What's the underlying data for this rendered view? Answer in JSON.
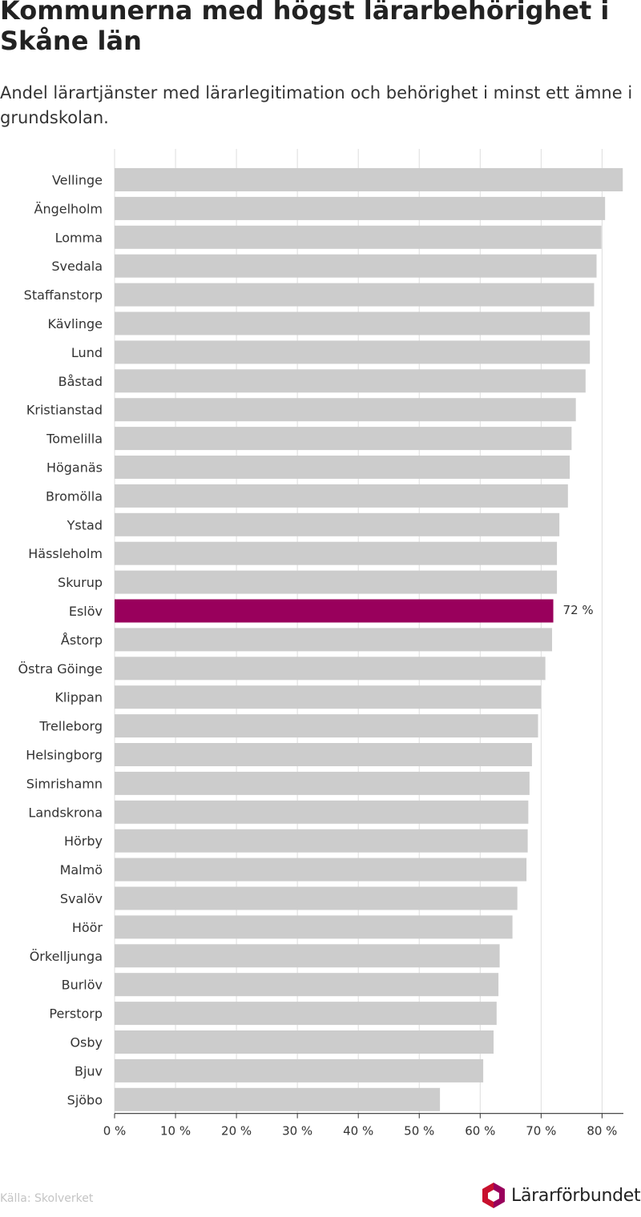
{
  "title": "Kommunerna med högst lärarbehörighet i Skåne län",
  "subtitle": "Andel lärartjänster med lärarlegitimation och behörighet i minst ett ämne i grundskolan.",
  "source": "Källa: Skolverket",
  "logo_text": "Lärarförbundet",
  "colors": {
    "bar": "#cccccc",
    "highlight": "#99005c",
    "grid": "#dddddd",
    "axis": "#333333",
    "logo_red": "#c8102e",
    "logo_purple": "#99005c"
  },
  "chart_data": {
    "type": "bar",
    "orientation": "horizontal",
    "categories": [
      "Vellinge",
      "Ängelholm",
      "Lomma",
      "Svedala",
      "Staffanstorp",
      "Kävlinge",
      "Lund",
      "Båstad",
      "Kristianstad",
      "Tomelilla",
      "Höganäs",
      "Bromölla",
      "Ystad",
      "Hässleholm",
      "Skurup",
      "Eslöv",
      "Åstorp",
      "Östra Göinge",
      "Klippan",
      "Trelleborg",
      "Helsingborg",
      "Simrishamn",
      "Landskrona",
      "Hörby",
      "Malmö",
      "Svalöv",
      "Höör",
      "Örkelljunga",
      "Burlöv",
      "Perstorp",
      "Osby",
      "Bjuv",
      "Sjöbo"
    ],
    "values": [
      83.4,
      80.5,
      79.9,
      79.1,
      78.7,
      78.0,
      78.0,
      77.3,
      75.7,
      75.0,
      74.7,
      74.4,
      73.0,
      72.6,
      72.6,
      72,
      71.8,
      70.7,
      70.0,
      69.5,
      68.5,
      68.1,
      67.9,
      67.8,
      67.6,
      66.1,
      65.3,
      63.2,
      63.0,
      62.7,
      62.2,
      60.5,
      53.4
    ],
    "highlight": "Eslöv",
    "highlight_label": "72 %",
    "xlim": [
      0,
      83.5
    ],
    "xticks": [
      0,
      10,
      20,
      30,
      40,
      50,
      60,
      70,
      80
    ],
    "xtick_labels": [
      "0 %",
      "10 %",
      "20 %",
      "30 %",
      "40 %",
      "50 %",
      "60 %",
      "70 %",
      "80 %"
    ],
    "grid": true,
    "xlabel": "",
    "ylabel": ""
  }
}
